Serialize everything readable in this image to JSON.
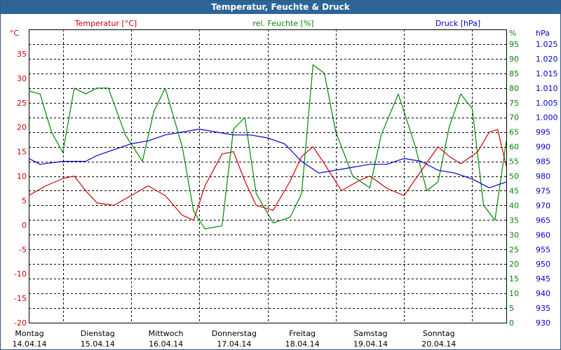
{
  "window": {
    "title": "Temperatur, Feuchte & Druck"
  },
  "colors": {
    "temperature": "#cc0000",
    "humidity": "#008800",
    "pressure": "#0000cc",
    "title_bar": "#2c6596"
  },
  "chart_data": {
    "type": "line",
    "title": "Temperatur, Feuchte & Druck",
    "grid": true,
    "x_start": "14.04.14 00:00",
    "x_end": "21.04.14 00:00",
    "x_ticks": [
      {
        "day": "Montag",
        "date": "14.04.14"
      },
      {
        "day": "Dienstag",
        "date": "15.04.14"
      },
      {
        "day": "Mittwoch",
        "date": "16.04.14"
      },
      {
        "day": "Donnerstag",
        "date": "17.04.14"
      },
      {
        "day": "Freitag",
        "date": "18.04.14"
      },
      {
        "day": "Samstag",
        "date": "19.04.14"
      },
      {
        "day": "Sonntag",
        "date": "20.04.14"
      }
    ],
    "axes": {
      "temperature": {
        "label": "Temperatur [°C]",
        "unit": "°C",
        "ylim": [
          -20,
          40
        ],
        "ticks": [
          -20,
          -15,
          -10,
          -5,
          0,
          5,
          10,
          15,
          20,
          25,
          30,
          35
        ]
      },
      "humidity": {
        "label": "rel. Feuchte [%]",
        "unit": "%",
        "ylim": [
          0,
          100
        ],
        "ticks": [
          0,
          5,
          10,
          15,
          20,
          25,
          30,
          35,
          40,
          45,
          50,
          55,
          60,
          65,
          70,
          75,
          80,
          85,
          90,
          95
        ]
      },
      "pressure": {
        "label": "Druck [hPa]",
        "unit": "hPa",
        "ylim": [
          930,
          1030
        ],
        "ticks": [
          "930",
          "935",
          "940",
          "945",
          "950",
          "955",
          "960",
          "965",
          "970",
          "975",
          "980",
          "985",
          "990",
          "995",
          "1.000",
          "1.005",
          "1.010",
          "1.015",
          "1.020",
          "1.025"
        ]
      }
    },
    "series": [
      {
        "name": "Temperatur [°C]",
        "axis": "temperature",
        "x": [
          "14.04.14 00:00",
          "14.04.14 06:00",
          "14.04.14 12:00",
          "14.04.14 16:00",
          "14.04.14 20:00",
          "15.04.14 00:00",
          "15.04.14 06:00",
          "15.04.14 12:00",
          "15.04.14 18:00",
          "16.04.14 00:00",
          "16.04.14 06:00",
          "16.04.14 10:00",
          "16.04.14 14:00",
          "16.04.14 20:00",
          "17.04.14 00:00",
          "17.04.14 04:00",
          "17.04.14 08:00",
          "17.04.14 14:00",
          "17.04.14 20:00",
          "18.04.14 00:00",
          "18.04.14 04:00",
          "18.04.14 08:00",
          "18.04.14 14:00",
          "18.04.14 20:00",
          "19.04.14 00:00",
          "19.04.14 06:00",
          "19.04.14 12:00",
          "19.04.14 18:00",
          "20.04.14 00:00",
          "20.04.14 04:00",
          "20.04.14 08:00",
          "20.04.14 14:00",
          "20.04.14 18:00",
          "20.04.14 21:00",
          "21.04.14 00:00"
        ],
        "y": [
          6,
          8,
          9.5,
          10,
          7,
          4.5,
          4,
          6,
          8,
          6,
          2,
          1,
          8,
          14.5,
          15,
          9,
          4,
          3,
          9,
          14,
          16,
          12.5,
          7,
          9,
          10,
          7.5,
          6,
          11,
          16,
          14,
          12.5,
          15,
          19,
          19.5,
          12
        ]
      },
      {
        "name": "rel. Feuchte [%]",
        "axis": "humidity",
        "x": [
          "14.04.14 00:00",
          "14.04.14 04:00",
          "14.04.14 08:00",
          "14.04.14 12:00",
          "14.04.14 16:00",
          "14.04.14 20:00",
          "15.04.14 00:00",
          "15.04.14 04:00",
          "15.04.14 10:00",
          "15.04.14 16:00",
          "15.04.14 20:00",
          "16.04.14 00:00",
          "16.04.14 06:00",
          "16.04.14 10:00",
          "16.04.14 14:00",
          "16.04.14 20:00",
          "17.04.14 00:00",
          "17.04.14 04:00",
          "17.04.14 08:00",
          "17.04.14 14:00",
          "17.04.14 20:00",
          "18.04.14 00:00",
          "18.04.14 04:00",
          "18.04.14 08:00",
          "18.04.14 12:00",
          "18.04.14 18:00",
          "19.04.14 00:00",
          "19.04.14 04:00",
          "19.04.14 10:00",
          "19.04.14 16:00",
          "19.04.14 20:00",
          "20.04.14 00:00",
          "20.04.14 04:00",
          "20.04.14 08:00",
          "20.04.14 12:00",
          "20.04.14 16:00",
          "20.04.14 20:00",
          "21.04.14 00:00"
        ],
        "y": [
          79,
          78,
          65,
          58,
          80,
          78,
          80,
          80,
          64,
          55,
          72,
          80,
          60,
          38,
          32,
          33,
          66,
          70,
          44,
          34,
          36,
          44,
          88,
          85,
          65,
          50,
          46,
          64,
          78,
          60,
          45,
          48,
          67,
          78,
          73,
          40,
          35,
          62
        ]
      },
      {
        "name": "Druck [hPa]",
        "axis": "pressure",
        "x": [
          "14.04.14 00:00",
          "14.04.14 04:00",
          "14.04.14 12:00",
          "14.04.14 20:00",
          "15.04.14 00:00",
          "15.04.14 06:00",
          "15.04.14 12:00",
          "15.04.14 18:00",
          "16.04.14 00:00",
          "16.04.14 06:00",
          "16.04.14 12:00",
          "16.04.14 18:00",
          "17.04.14 00:00",
          "17.04.14 06:00",
          "17.04.14 12:00",
          "17.04.14 18:00",
          "18.04.14 00:00",
          "18.04.14 06:00",
          "18.04.14 12:00",
          "18.04.14 18:00",
          "19.04.14 00:00",
          "19.04.14 06:00",
          "19.04.14 12:00",
          "19.04.14 18:00",
          "20.04.14 00:00",
          "20.04.14 06:00",
          "20.04.14 12:00",
          "20.04.14 18:00",
          "21.04.14 00:00"
        ],
        "y": [
          986,
          984,
          985,
          985,
          987,
          989,
          991,
          992,
          994,
          995,
          996,
          995,
          994,
          994,
          993,
          991,
          985,
          981,
          982,
          983,
          984,
          984,
          986,
          985,
          982,
          981,
          979,
          976,
          978
        ]
      }
    ]
  }
}
